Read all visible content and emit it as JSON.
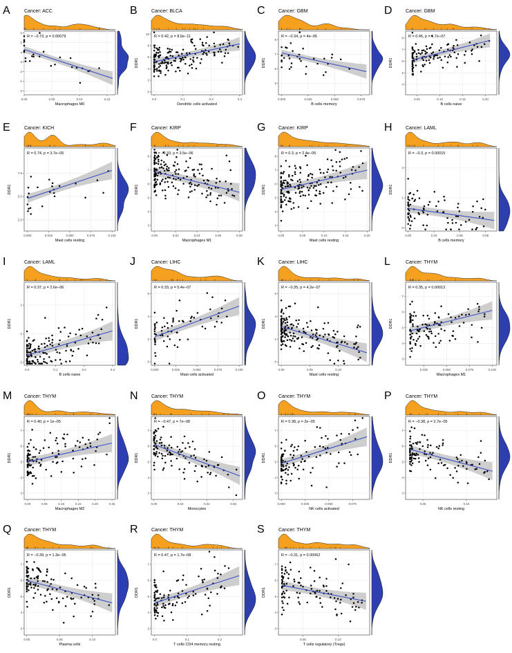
{
  "colors": {
    "marginal_x": "#F5A01F",
    "marginal_y": "#2D3FAE",
    "fit_line": "#3B4FC4",
    "ci_band": "#BEBEBE",
    "panel_bg": "#FFFFFF",
    "grid": "#EBEBEB",
    "point": "#000000"
  },
  "chart_data": [
    {
      "panel": "A",
      "type": "scatter",
      "title": "Cancer: ACC",
      "xlabel": "Macrophages M0",
      "ylabel": "",
      "annotation": "R = −0.73, p = 0.00079",
      "xlim": [
        0,
        0.165
      ],
      "ylim": [
        -0.4,
        6.2
      ],
      "xticks": [
        "0.00",
        "0.05",
        "0.10",
        "0.15"
      ],
      "xtick_values": [
        0,
        0.05,
        0.1,
        0.15
      ],
      "yticks": [
        "0",
        "1",
        "2",
        "3",
        "4",
        "5",
        "6"
      ],
      "ytick_values": [
        0,
        1,
        2,
        3,
        4,
        5,
        6
      ],
      "fit": {
        "x": [
          0,
          0.16
        ],
        "y": [
          4.3,
          1.3
        ]
      },
      "n_points": 26,
      "seed": 11
    },
    {
      "panel": "B",
      "type": "scatter",
      "title": "Cancer: BLCA",
      "xlabel": "Dendritic cells activated",
      "ylabel": "DDR1",
      "annotation": "R = 0.42, p = 8.6e−11",
      "xlim": [
        -0.01,
        0.31
      ],
      "ylim": [
        -0.5,
        10.5
      ],
      "xticks": [
        "0.0",
        "0.1",
        "0.2",
        "0.3"
      ],
      "xtick_values": [
        0,
        0.1,
        0.2,
        0.3
      ],
      "yticks": [
        "0",
        "2",
        "4",
        "6",
        "8",
        "10"
      ],
      "ytick_values": [
        0,
        2,
        4,
        6,
        8,
        10
      ],
      "fit": {
        "x": [
          0,
          0.3
        ],
        "y": [
          5.2,
          8.3
        ]
      },
      "n_points": 170,
      "seed": 22
    },
    {
      "panel": "C",
      "type": "scatter",
      "title": "Cancer: GBM",
      "xlabel": "B cells memory",
      "ylabel": "DDR1",
      "annotation": "R = −0.34, p = 4e−05",
      "xlim": [
        -0.003,
        0.083
      ],
      "ylim": [
        4.2,
        8.6
      ],
      "xticks": [
        "0.000",
        "0.025",
        "0.050",
        "0.075"
      ],
      "xtick_values": [
        0,
        0.025,
        0.05,
        0.075
      ],
      "yticks": [
        "5",
        "6",
        "7",
        "8"
      ],
      "ytick_values": [
        5,
        6,
        7,
        8
      ],
      "fit": {
        "x": [
          0,
          0.08
        ],
        "y": [
          7.1,
          5.8
        ]
      },
      "n_points": 34,
      "seed": 33
    },
    {
      "panel": "D",
      "type": "scatter",
      "title": "Cancer: GBM",
      "xlabel": "B cells naive",
      "ylabel": "DDR1",
      "annotation": "R = 0.45, p = 1.7e−07",
      "xlim": [
        0.025,
        0.225
      ],
      "ylim": [
        3.1,
        8.6
      ],
      "xticks": [
        "0.05",
        "0.10",
        "0.15",
        "0.20"
      ],
      "xtick_values": [
        0.05,
        0.1,
        0.15,
        0.2
      ],
      "yticks": [
        "4",
        "5",
        "6",
        "7",
        "8"
      ],
      "ytick_values": [
        4,
        5,
        6,
        7,
        8
      ],
      "fit": {
        "x": [
          0.04,
          0.21
        ],
        "y": [
          6.1,
          7.8
        ]
      },
      "n_points": 120,
      "seed": 44
    },
    {
      "panel": "E",
      "type": "scatter",
      "title": "Cancer: KICH",
      "xlabel": "Mast cells resting",
      "ylabel": "DDR1",
      "annotation": "R = 0.74, p = 3.7e−05",
      "xlim": [
        -0.004,
        0.104
      ],
      "ylim": [
        1.3,
        10.2
      ],
      "xticks": [
        "0.000",
        "0.025",
        "0.050",
        "0.075",
        "0.100"
      ],
      "xtick_values": [
        0,
        0.025,
        0.05,
        0.075,
        0.1
      ],
      "yticks": [
        "2.5",
        "5.0",
        "7.5"
      ],
      "ytick_values": [
        2.5,
        5,
        7.5
      ],
      "fit": {
        "x": [
          0,
          0.1
        ],
        "y": [
          4.8,
          7.8
        ]
      },
      "n_points": 24,
      "seed": 55
    },
    {
      "panel": "F",
      "type": "scatter",
      "title": "Cancer: KIRP",
      "xlabel": "Macrophages M1",
      "ylabel": "DDR1",
      "annotation": "R = −0.33, p = 3.5e−06",
      "xlim": [
        -0.003,
        0.083
      ],
      "ylim": [
        2.6,
        8.6
      ],
      "xticks": [
        "0.00",
        "0.02",
        "0.04",
        "0.06",
        "0.08"
      ],
      "xtick_values": [
        0,
        0.02,
        0.04,
        0.06,
        0.08
      ],
      "yticks": [
        "3",
        "4",
        "5",
        "6",
        "7",
        "8"
      ],
      "ytick_values": [
        3,
        4,
        5,
        6,
        7,
        8
      ],
      "fit": {
        "x": [
          0,
          0.08
        ],
        "y": [
          6.9,
          5.4
        ]
      },
      "n_points": 190,
      "seed": 66
    },
    {
      "panel": "G",
      "type": "scatter",
      "title": "Cancer: KIRP",
      "xlabel": "Mast cells resting",
      "ylabel": "DDR1",
      "annotation": "R = 0.3, p = 2.4e−05",
      "xlim": [
        -0.006,
        0.206
      ],
      "ylim": [
        2.6,
        8.6
      ],
      "xticks": [
        "0.00",
        "0.05",
        "0.10",
        "0.15",
        "0.20"
      ],
      "xtick_values": [
        0,
        0.05,
        0.1,
        0.15,
        0.2
      ],
      "yticks": [
        "3",
        "4",
        "5",
        "6",
        "7",
        "8"
      ],
      "ytick_values": [
        3,
        4,
        5,
        6,
        7,
        8
      ],
      "fit": {
        "x": [
          0,
          0.2
        ],
        "y": [
          5.6,
          7.0
        ]
      },
      "n_points": 190,
      "seed": 77
    },
    {
      "panel": "H",
      "type": "scatter",
      "title": "Cancer: LAML",
      "xlabel": "B cells memory",
      "ylabel": "DDR1",
      "annotation": "R = −0.3, p = 0.00015",
      "xlim": [
        -0.003,
        0.103
      ],
      "ylim": [
        -0.1,
        2.65
      ],
      "xticks": [
        "0.00",
        "0.03",
        "0.06",
        "0.09"
      ],
      "xtick_values": [
        0,
        0.03,
        0.06,
        0.09
      ],
      "yticks": [
        "0",
        "1",
        "2"
      ],
      "ytick_values": [
        0,
        1,
        2
      ],
      "fit": {
        "x": [
          0,
          0.1
        ],
        "y": [
          0.65,
          0.25
        ]
      },
      "n_points": 90,
      "seed": 88
    },
    {
      "panel": "I",
      "type": "scatter",
      "title": "Cancer: LAML",
      "xlabel": "B cells naive",
      "ylabel": "DDR1",
      "annotation": "R = 0.37, p = 2.6e−06",
      "xlim": [
        -0.01,
        0.31
      ],
      "ylim": [
        -0.1,
        2.8
      ],
      "xticks": [
        "0.0",
        "0.1",
        "0.2",
        "0.3"
      ],
      "xtick_values": [
        0,
        0.1,
        0.2,
        0.3
      ],
      "yticks": [
        "0",
        "1",
        "2"
      ],
      "ytick_values": [
        0,
        1,
        2
      ],
      "fit": {
        "x": [
          0,
          0.3
        ],
        "y": [
          0.25,
          1.1
        ]
      },
      "n_points": 150,
      "seed": 99
    },
    {
      "panel": "J",
      "type": "scatter",
      "title": "Cancer: LIHC",
      "xlabel": "Mast cells activated",
      "ylabel": "DDR1",
      "annotation": "R = 0.33, p = 5.4e−07",
      "xlim": [
        -0.004,
        0.104
      ],
      "ylim": [
        -0.3,
        7.0
      ],
      "xticks": [
        "0.000",
        "0.025",
        "0.050",
        "0.075",
        "0.100"
      ],
      "xtick_values": [
        0,
        0.025,
        0.05,
        0.075,
        0.1
      ],
      "yticks": [
        "0",
        "2",
        "4",
        "6"
      ],
      "ytick_values": [
        0,
        2,
        4,
        6
      ],
      "fit": {
        "x": [
          0,
          0.1
        ],
        "y": [
          2.2,
          4.9
        ]
      },
      "n_points": 70,
      "seed": 111
    },
    {
      "panel": "K",
      "type": "scatter",
      "title": "Cancer: LIHC",
      "xlabel": "Mast cells resting",
      "ylabel": "DDR1",
      "annotation": "R = −0.35, p = 4.2e−07",
      "xlim": [
        -0.005,
        0.155
      ],
      "ylim": [
        -0.3,
        7.0
      ],
      "xticks": [
        "0.00",
        "0.05",
        "0.10"
      ],
      "xtick_values": [
        0,
        0.05,
        0.1
      ],
      "yticks": [
        "0",
        "2",
        "4",
        "6"
      ],
      "ytick_values": [
        0,
        2,
        4,
        6
      ],
      "fit": {
        "x": [
          0,
          0.15
        ],
        "y": [
          3.1,
          0.8
        ]
      },
      "n_points": 190,
      "seed": 122
    },
    {
      "panel": "L",
      "type": "scatter",
      "title": "Cancer: THYM",
      "xlabel": "Macrophages M1",
      "ylabel": "DDR1",
      "annotation": "R = 0.35, p = 0.00013",
      "xlim": [
        0.005,
        0.105
      ],
      "ylim": [
        2.6,
        7.9
      ],
      "xticks": [
        "0.025",
        "0.050",
        "0.075",
        "0.100"
      ],
      "xtick_values": [
        0.025,
        0.05,
        0.075,
        0.1
      ],
      "yticks": [
        "3",
        "4",
        "5",
        "6",
        "7"
      ],
      "ytick_values": [
        3,
        4,
        5,
        6,
        7
      ],
      "fit": {
        "x": [
          0.01,
          0.1
        ],
        "y": [
          4.8,
          6.1
        ]
      },
      "n_points": 115,
      "seed": 133
    },
    {
      "panel": "M",
      "type": "scatter",
      "title": "Cancer: THYM",
      "xlabel": "Macrophages M2",
      "ylabel": "DDR1",
      "annotation": "R = 0.40, p = 1e−05",
      "xlim": [
        -0.01,
        0.26
      ],
      "ylim": [
        2.6,
        7.9
      ],
      "xticks": [
        "0.00",
        "0.05",
        "0.10",
        "0.15",
        "0.20",
        "0.25"
      ],
      "xtick_values": [
        0,
        0.05,
        0.1,
        0.15,
        0.2,
        0.25
      ],
      "yticks": [
        "3",
        "4",
        "5",
        "6",
        "7"
      ],
      "ytick_values": [
        3,
        4,
        5,
        6,
        7
      ],
      "fit": {
        "x": [
          0,
          0.25
        ],
        "y": [
          5.0,
          6.2
        ]
      },
      "n_points": 115,
      "seed": 144
    },
    {
      "panel": "N",
      "type": "scatter",
      "title": "Cancer: THYM",
      "xlabel": "Monocytes",
      "ylabel": "DDR1",
      "annotation": "R = −0.47, p = 7e−08",
      "xlim": [
        -0.002,
        0.067
      ],
      "ylim": [
        2.6,
        7.9
      ],
      "xticks": [
        "0.00",
        "0.02",
        "0.04",
        "0.06"
      ],
      "xtick_values": [
        0,
        0.02,
        0.04,
        0.06
      ],
      "yticks": [
        "3",
        "4",
        "5",
        "6",
        "7"
      ],
      "ytick_values": [
        3,
        4,
        5,
        6,
        7
      ],
      "fit": {
        "x": [
          0,
          0.065
        ],
        "y": [
          6.1,
          4.1
        ]
      },
      "n_points": 115,
      "seed": 155
    },
    {
      "panel": "O",
      "type": "scatter",
      "title": "Cancer: THYM",
      "xlabel": "NK cells activated",
      "ylabel": "DDR1",
      "annotation": "R = 0.38, p = 2e−05",
      "xlim": [
        -0.003,
        0.093
      ],
      "ylim": [
        2.6,
        7.9
      ],
      "xticks": [
        "0.000",
        "0.025",
        "0.050",
        "0.075"
      ],
      "xtick_values": [
        0,
        0.025,
        0.05,
        0.075
      ],
      "yticks": [
        "3",
        "4",
        "5",
        "6",
        "7"
      ],
      "ytick_values": [
        3,
        4,
        5,
        6,
        7
      ],
      "fit": {
        "x": [
          0,
          0.09
        ],
        "y": [
          4.9,
          6.6
        ]
      },
      "n_points": 115,
      "seed": 166
    },
    {
      "panel": "P",
      "type": "scatter",
      "title": "Cancer: THYM",
      "xlabel": "NK cells resting",
      "ylabel": "DDR1",
      "annotation": "R = −0.38, p = 2.7e−05",
      "xlim": [
        0.03,
        0.135
      ],
      "ylim": [
        2.6,
        7.9
      ],
      "xticks": [
        "0.05",
        "0.10"
      ],
      "xtick_values": [
        0.05,
        0.1
      ],
      "yticks": [
        "3",
        "4",
        "5",
        "6",
        "7"
      ],
      "ytick_values": [
        3,
        4,
        5,
        6,
        7
      ],
      "fit": {
        "x": [
          0.035,
          0.13
        ],
        "y": [
          5.8,
          4.4
        ]
      },
      "n_points": 115,
      "seed": 177
    },
    {
      "panel": "Q",
      "type": "scatter",
      "title": "Cancer: THYM",
      "xlabel": "Plasma cells",
      "ylabel": "DDR1",
      "annotation": "R = −0.39, p = 1.3e−05",
      "xlim": [
        -0.004,
        0.135
      ],
      "ylim": [
        2.6,
        7.9
      ],
      "xticks": [
        "0.00",
        "0.05",
        "0.10"
      ],
      "xtick_values": [
        0,
        0.05,
        0.1
      ],
      "yticks": [
        "3",
        "4",
        "5",
        "6",
        "7"
      ],
      "ytick_values": [
        3,
        4,
        5,
        6,
        7
      ],
      "fit": {
        "x": [
          0,
          0.13
        ],
        "y": [
          6.0,
          4.6
        ]
      },
      "n_points": 115,
      "seed": 188
    },
    {
      "panel": "R",
      "type": "scatter",
      "title": "Cancer: THYM",
      "xlabel": "T cells CD4 memory resting",
      "ylabel": "DDR1",
      "annotation": "R = 0.47, p = 1.7e−08",
      "xlim": [
        -0.01,
        0.27
      ],
      "ylim": [
        2.6,
        7.9
      ],
      "xticks": [
        "0.0",
        "0.1",
        "0.2"
      ],
      "xtick_values": [
        0,
        0.1,
        0.2
      ],
      "yticks": [
        "3",
        "4",
        "5",
        "6",
        "7"
      ],
      "ytick_values": [
        3,
        4,
        5,
        6,
        7
      ],
      "fit": {
        "x": [
          0,
          0.26
        ],
        "y": [
          4.6,
          6.3
        ]
      },
      "n_points": 115,
      "seed": 199
    },
    {
      "panel": "S",
      "type": "scatter",
      "title": "Cancer: THYM",
      "xlabel": "T cells regulatory (Tregs)",
      "ylabel": "DDR1",
      "annotation": "R = −0.31, p = 0.00062",
      "xlim": [
        0.015,
        0.145
      ],
      "ylim": [
        2.6,
        7.9
      ],
      "xticks": [
        "0.05",
        "0.10"
      ],
      "xtick_values": [
        0.05,
        0.1
      ],
      "yticks": [
        "3",
        "4",
        "5",
        "6",
        "7"
      ],
      "ytick_values": [
        3,
        4,
        5,
        6,
        7
      ],
      "fit": {
        "x": [
          0.02,
          0.14
        ],
        "y": [
          5.7,
          4.7
        ]
      },
      "n_points": 115,
      "seed": 210
    }
  ]
}
